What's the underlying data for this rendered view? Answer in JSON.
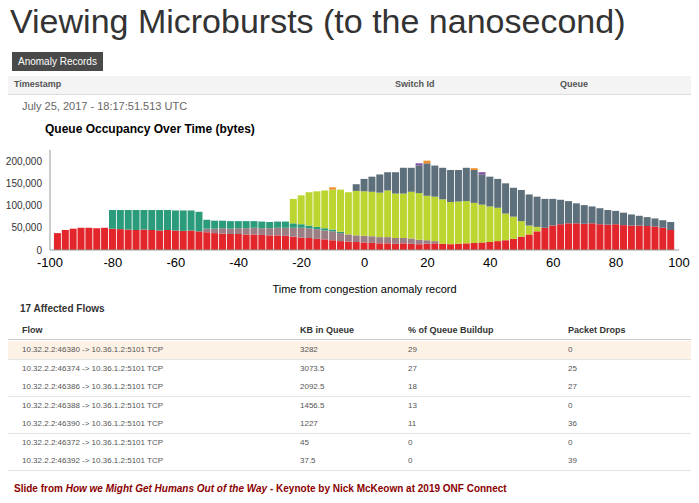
{
  "title": "Viewing Microbursts (to the nanosecond)",
  "button": "Anomaly Records",
  "record_header": [
    "Timestamp",
    "Switch Id",
    "Queue"
  ],
  "timestamp": "July 25, 2017 - 18:17:51.513 UTC",
  "chart_data": {
    "type": "bar",
    "title": "Queue Occupancy Over Time (bytes)",
    "x_label": "Time from congestion anomaly record",
    "stacked": true,
    "grid": false,
    "xlim": [
      -100,
      100
    ],
    "xticks": [
      -100,
      -80,
      -60,
      -40,
      -20,
      0,
      20,
      40,
      60,
      80,
      100
    ],
    "ylim": [
      0,
      225000
    ],
    "yticks": [
      0,
      {
        "value": 50000,
        "label": "50,000"
      },
      {
        "value": 100000,
        "label": "100,000"
      },
      {
        "value": 150000,
        "label": "150,000"
      },
      {
        "value": 200000,
        "label": "200,000"
      }
    ],
    "x": [
      -97.5,
      -95,
      -92.5,
      -90,
      -87.5,
      -85,
      -82.5,
      -80,
      -77.5,
      -75,
      -72.5,
      -70,
      -67.5,
      -65,
      -62.5,
      -60,
      -57.5,
      -55,
      -52.5,
      -50,
      -47.5,
      -45,
      -42.5,
      -40,
      -37.5,
      -35,
      -32.5,
      -30,
      -27.5,
      -25,
      -22.5,
      -20,
      -17.5,
      -15,
      -12.5,
      -10,
      -7.5,
      -5,
      -2.5,
      0,
      2.5,
      5,
      7.5,
      10,
      12.5,
      15,
      17.5,
      20,
      22.5,
      25,
      27.5,
      30,
      32.5,
      35,
      37.5,
      40,
      42.5,
      45,
      47.5,
      50,
      52.5,
      55,
      57.5,
      60,
      62.5,
      65,
      67.5,
      70,
      72.5,
      75,
      77.5,
      80,
      82.5,
      85,
      87.5,
      90,
      92.5,
      95,
      97.5
    ],
    "series": [
      {
        "color": "#e3262b",
        "values": [
          38000,
          45000,
          48000,
          50000,
          50000,
          49000,
          50000,
          48000,
          47000,
          46000,
          45000,
          46000,
          45000,
          44000,
          45000,
          44000,
          43000,
          44000,
          42000,
          40000,
          38000,
          37000,
          36000,
          36000,
          35000,
          35000,
          34000,
          33000,
          33000,
          32000,
          30000,
          28000,
          27000,
          25000,
          24000,
          22000,
          20000,
          19000,
          18000,
          17000,
          16000,
          15000,
          15000,
          14000,
          15000,
          14000,
          13000,
          14000,
          15000,
          14000,
          13000,
          14000,
          15000,
          16000,
          17000,
          18000,
          20000,
          22000,
          25000,
          30000,
          35000,
          42000,
          50000,
          55000,
          58000,
          60000,
          60000,
          59000,
          60000,
          58000,
          57000,
          58000,
          56000,
          55000,
          55000,
          54000,
          53000,
          50000,
          45000
        ]
      },
      {
        "color": "#9b7e83",
        "values": [
          0,
          0,
          0,
          0,
          0,
          0,
          0,
          0,
          0,
          0,
          0,
          0,
          0,
          0,
          0,
          0,
          0,
          0,
          0,
          8000,
          10000,
          12000,
          12000,
          13000,
          14000,
          15000,
          15000,
          16000,
          17000,
          18000,
          20000,
          22000,
          22000,
          22000,
          20000,
          20000,
          18000,
          16000,
          15000,
          15000,
          15000,
          14000,
          14000,
          13000,
          12000,
          12000,
          10000,
          8000,
          5000,
          0,
          0,
          0,
          0,
          0,
          0,
          0,
          0,
          0,
          0,
          0,
          0,
          0,
          0,
          0,
          0,
          0,
          0,
          0,
          0,
          0,
          0,
          0,
          0,
          0,
          0,
          0,
          0,
          0,
          0
        ]
      },
      {
        "color": "#2b9c7b",
        "values": [
          0,
          0,
          0,
          0,
          0,
          0,
          0,
          42000,
          43000,
          44000,
          45000,
          44000,
          45000,
          46000,
          45000,
          45000,
          46000,
          45000,
          44000,
          20000,
          18000,
          17000,
          17000,
          16000,
          16000,
          15000,
          15000,
          14000,
          14000,
          14000,
          10000,
          8000,
          6000,
          5000,
          5000,
          4000,
          3000,
          0,
          0,
          0,
          0,
          0,
          0,
          0,
          0,
          0,
          0,
          0,
          0,
          0,
          0,
          0,
          0,
          0,
          0,
          0,
          0,
          0,
          0,
          0,
          0,
          0,
          0,
          0,
          0,
          0,
          0,
          0,
          0,
          0,
          0,
          0,
          0,
          0,
          0,
          0,
          0,
          0,
          0
        ]
      },
      {
        "color": "#bcd531",
        "values": [
          0,
          0,
          0,
          0,
          0,
          0,
          0,
          0,
          0,
          0,
          0,
          0,
          0,
          0,
          0,
          0,
          0,
          0,
          0,
          0,
          0,
          0,
          0,
          0,
          0,
          0,
          0,
          0,
          0,
          0,
          55000,
          65000,
          75000,
          80000,
          85000,
          90000,
          95000,
          95000,
          100000,
          100000,
          100000,
          100000,
          105000,
          100000,
          100000,
          105000,
          105000,
          100000,
          100000,
          100000,
          95000,
          95000,
          95000,
          90000,
          85000,
          80000,
          75000,
          60000,
          50000,
          35000,
          20000,
          10000,
          0,
          0,
          0,
          0,
          0,
          0,
          0,
          0,
          0,
          0,
          0,
          0,
          0,
          0,
          0,
          0,
          0
        ]
      },
      {
        "color": "#5c6f7b",
        "values": [
          0,
          0,
          0,
          0,
          0,
          0,
          0,
          0,
          0,
          0,
          0,
          0,
          0,
          0,
          0,
          0,
          0,
          0,
          0,
          0,
          0,
          0,
          0,
          0,
          0,
          0,
          0,
          0,
          0,
          0,
          0,
          0,
          0,
          0,
          0,
          0,
          0,
          0,
          15000,
          28000,
          34000,
          41000,
          41000,
          48000,
          58000,
          54000,
          62000,
          73000,
          70000,
          71000,
          72000,
          71000,
          75000,
          74000,
          68000,
          67000,
          65000,
          68000,
          65000,
          70000,
          70000,
          68000,
          65000,
          60000,
          55000,
          50000,
          45000,
          42000,
          38000,
          36000,
          33000,
          30000,
          28000,
          25000,
          22000,
          20000,
          18000,
          17000,
          18000
        ]
      },
      {
        "color": "#f08c2a",
        "values": [
          0,
          0,
          0,
          0,
          0,
          0,
          0,
          0,
          0,
          0,
          0,
          0,
          0,
          0,
          0,
          0,
          0,
          0,
          0,
          0,
          0,
          0,
          0,
          0,
          0,
          0,
          0,
          0,
          0,
          0,
          0,
          0,
          0,
          0,
          0,
          5000,
          0,
          0,
          0,
          0,
          0,
          0,
          0,
          0,
          0,
          0,
          0,
          6000,
          0,
          0,
          0,
          0,
          0,
          4000,
          0,
          0,
          0,
          0,
          0,
          0,
          0,
          0,
          0,
          0,
          0,
          0,
          0,
          0,
          0,
          0,
          0,
          0,
          0,
          0,
          0,
          0,
          0,
          0,
          0
        ]
      },
      {
        "color": "#7d4e9f",
        "values": [
          0,
          0,
          0,
          0,
          0,
          0,
          0,
          0,
          0,
          0,
          0,
          0,
          0,
          0,
          0,
          0,
          0,
          0,
          0,
          0,
          0,
          0,
          0,
          0,
          0,
          0,
          0,
          0,
          0,
          0,
          0,
          0,
          0,
          0,
          0,
          0,
          0,
          0,
          0,
          0,
          0,
          0,
          0,
          0,
          0,
          0,
          5000,
          0,
          0,
          0,
          0,
          0,
          0,
          0,
          5000,
          0,
          0,
          0,
          0,
          0,
          0,
          0,
          0,
          0,
          0,
          0,
          0,
          0,
          0,
          0,
          0,
          0,
          0,
          0,
          0,
          0,
          0,
          0,
          0
        ]
      }
    ]
  },
  "table": {
    "title": "17 Affected Flows",
    "columns": [
      "Flow",
      "KB in Queue",
      "% of Queue Buildup",
      "Packet Drops"
    ],
    "rows": [
      [
        "10.32.2.2:46380 -> 10.36.1.2:5101 TCP",
        3282,
        29,
        0
      ],
      [
        "10.32.2.2:46374 -> 10.36.1.2:5101 TCP",
        3073.5,
        27,
        25
      ],
      [
        "10.32.2.2:46386 -> 10.36.1.2:5101 TCP",
        2092.5,
        18,
        27
      ],
      [
        "10.32.2.2:46388 -> 10.36.1.2:5101 TCP",
        1456.5,
        13,
        0
      ],
      [
        "10.32.2.2:46390 -> 10.36.1.2:5101 TCP",
        1227,
        11,
        36
      ],
      [
        "10.32.2.2:46372 -> 10.36.1.2:5101 TCP",
        45,
        0,
        0
      ],
      [
        "10.32.2.2:46392 -> 10.36.1.2:5101 TCP",
        37.5,
        0,
        39
      ]
    ]
  },
  "footer": {
    "prefix": "Slide from ",
    "title": "How we Might Get Humans Out of the Way",
    "suffix": " - Keynote by Nick McKeown at 2019 ONF Connect"
  }
}
